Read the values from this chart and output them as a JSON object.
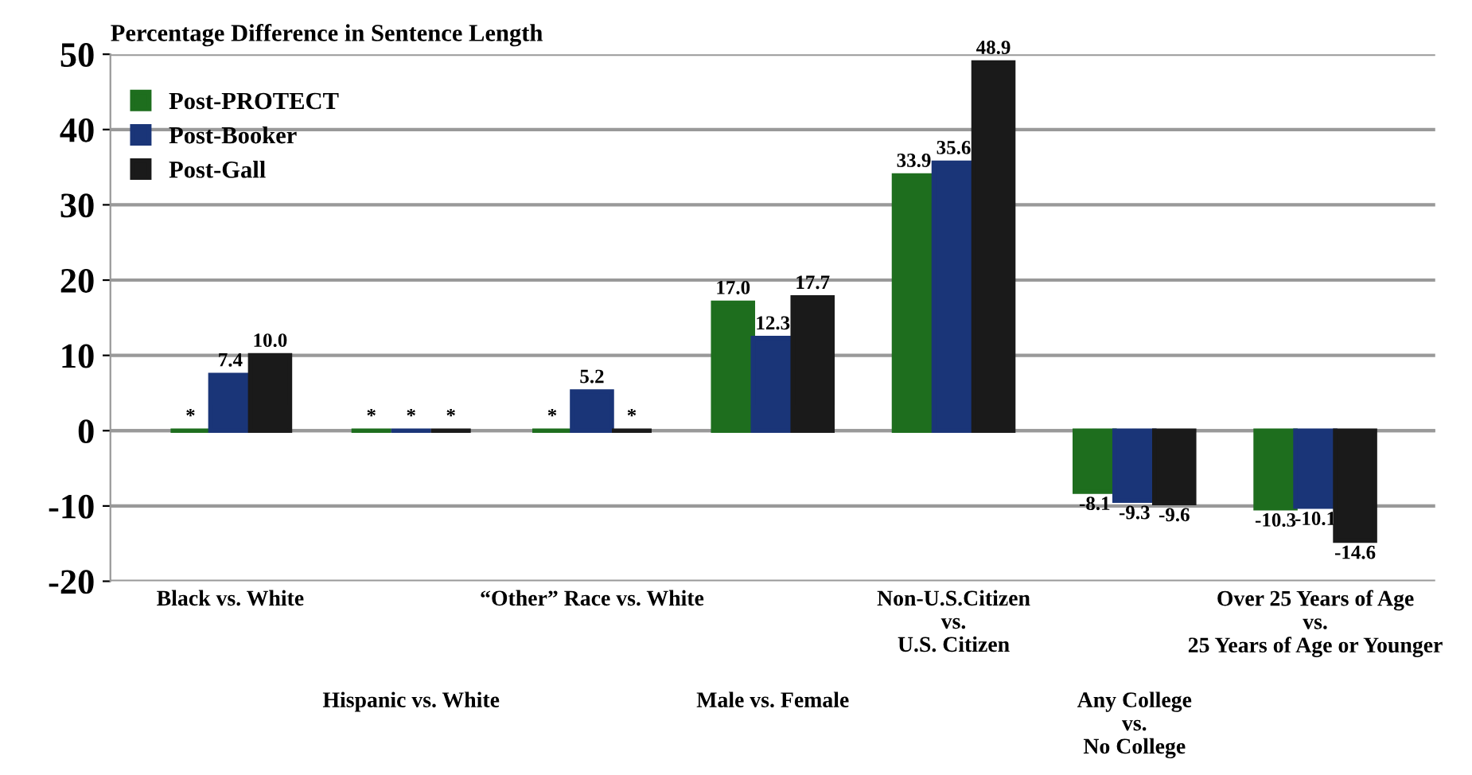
{
  "chart_data": {
    "type": "bar",
    "title": "Percentage Difference in Sentence Length",
    "categories": [
      "Black vs. White",
      "Hispanic vs. White",
      "“Other” Race vs. White",
      "Male vs. Female",
      "Non-U.S.Citizen\nvs.\nU.S. Citizen",
      "Any College\nvs.\nNo College",
      "Over 25 Years of Age\nvs.\n25 Years of Age or Younger"
    ],
    "series": [
      {
        "name": "Post-PROTECT",
        "color": "#1e6e1e",
        "values": [
          0,
          0,
          0,
          17.0,
          33.9,
          -8.1,
          -10.3
        ],
        "value_labels": [
          "*",
          "*",
          "*",
          "17.0",
          "33.9",
          "-8.1",
          "-10.3"
        ]
      },
      {
        "name": "Post-Booker",
        "color": "#1a3578",
        "values": [
          7.4,
          0,
          5.2,
          12.3,
          35.6,
          -9.3,
          -10.1
        ],
        "value_labels": [
          "7.4",
          "*",
          "5.2",
          "12.3",
          "35.6",
          "-9.3",
          "-10.1"
        ]
      },
      {
        "name": "Post-Gall",
        "color": "#1a1a1a",
        "values": [
          10.0,
          0,
          0,
          17.7,
          48.9,
          -9.6,
          -14.6
        ],
        "value_labels": [
          "10.0",
          "*",
          "*",
          "17.7",
          "48.9",
          "-9.6",
          "-14.6"
        ]
      }
    ],
    "ylim": [
      -20,
      50
    ],
    "yticks": [
      -20,
      -10,
      0,
      10,
      20,
      30,
      40,
      50
    ],
    "grid": "y",
    "legend": "top left"
  }
}
